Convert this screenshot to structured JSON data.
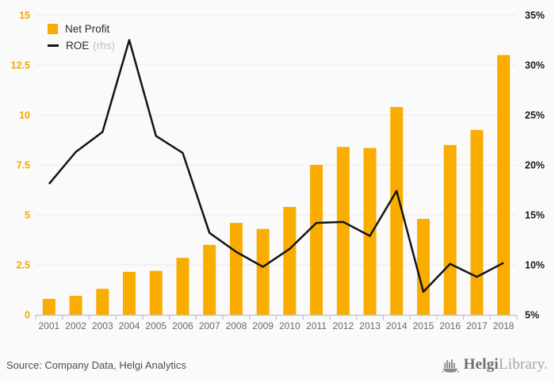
{
  "colors": {
    "background": "#fafafa",
    "bar": "#F9AD00",
    "line": "#141414",
    "left_axis_labels": "#F5A700",
    "right_axis_labels": "#1a1a1a",
    "x_axis_labels": "#6a6a6a",
    "gridline": "#e9e9e9",
    "baseline": "#b6c0dc",
    "source_text": "#4e4e4e",
    "logo_gray": "#8a8a8a"
  },
  "legend": {
    "items": [
      {
        "label": "Net Profit",
        "marker": "square"
      },
      {
        "label": "ROE",
        "suffix": "(rhs)",
        "marker": "line"
      }
    ]
  },
  "footer": {
    "source": "Source: Company Data, Helgi Analytics",
    "logo_bold": "Helgi",
    "logo_light": "Library."
  },
  "chart_data": {
    "type": "bar+line",
    "title": "",
    "categories": [
      "2001",
      "2002",
      "2003",
      "2004",
      "2005",
      "2006",
      "2007",
      "2008",
      "2009",
      "2010",
      "2011",
      "2012",
      "2013",
      "2014",
      "2015",
      "2016",
      "2017",
      "2018"
    ],
    "series": [
      {
        "name": "Net Profit",
        "type": "bar",
        "axis": "left",
        "values": [
          0.8,
          0.95,
          1.3,
          2.15,
          2.2,
          2.85,
          3.5,
          4.6,
          4.3,
          5.4,
          7.5,
          8.4,
          8.35,
          10.4,
          4.8,
          8.5,
          9.25,
          13.0
        ]
      },
      {
        "name": "ROE",
        "type": "line",
        "axis": "right",
        "unit": "%",
        "values": [
          18.1,
          21.3,
          23.3,
          32.5,
          22.9,
          21.2,
          13.2,
          11.3,
          9.8,
          11.6,
          14.2,
          14.3,
          12.9,
          17.4,
          7.3,
          10.1,
          8.8,
          10.2
        ]
      }
    ],
    "left_axis": {
      "min": 0,
      "max": 15,
      "tick_values": [
        0,
        2.5,
        5,
        7.5,
        10,
        12.5,
        15
      ],
      "tick_labels": [
        "0",
        "2.5",
        "5",
        "7.5",
        "10",
        "12.5",
        "15"
      ]
    },
    "right_axis": {
      "min": 5,
      "max": 35,
      "tick_values": [
        5,
        10,
        15,
        20,
        25,
        30,
        35
      ],
      "tick_labels": [
        "5%",
        "10%",
        "15%",
        "20%",
        "25%",
        "30%",
        "35%"
      ]
    },
    "grid": true,
    "legend_position": "top-left"
  }
}
